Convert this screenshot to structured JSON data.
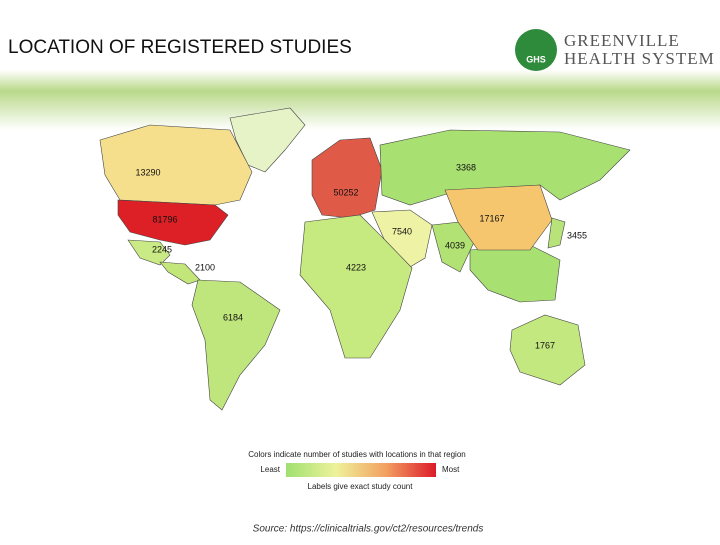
{
  "header": {
    "title": "LOCATION OF REGISTERED STUDIES",
    "logo": {
      "mark": "GHS",
      "line1": "GREENVILLE",
      "line2": "HEALTH SYSTEM"
    }
  },
  "map": {
    "regions": [
      {
        "value": 13290,
        "color": "#f6df8c"
      },
      {
        "value": 81796,
        "color": "#dc2026"
      },
      {
        "value": 2245,
        "color": "#c9ea84"
      },
      {
        "value": 2100,
        "color": "#c2e67a"
      },
      {
        "value": 6184,
        "color": "#bfe67c"
      },
      {
        "value": 50252,
        "color": "#e05a48"
      },
      {
        "value": 3368,
        "color": "#a9e072"
      },
      {
        "value": 7540,
        "color": "#eef2a4"
      },
      {
        "value": 4223,
        "color": "#c6ea80"
      },
      {
        "value": 4039,
        "color": "#b2e274"
      },
      {
        "value": 17167,
        "color": "#f5c66e"
      },
      {
        "value": 3455,
        "color": "#b8e27a"
      },
      {
        "value": 1767,
        "color": "#c4e880"
      }
    ]
  },
  "legend": {
    "caption": "Colors indicate number of studies with locations in that region",
    "low": "Least",
    "high": "Most",
    "note": "Labels give exact study count",
    "colors": [
      "#9fe070",
      "#eef29a",
      "#f2a060",
      "#dc1a2a"
    ]
  },
  "source": "Source: https://clinicaltrials.gov/ct2/resources/trends"
}
